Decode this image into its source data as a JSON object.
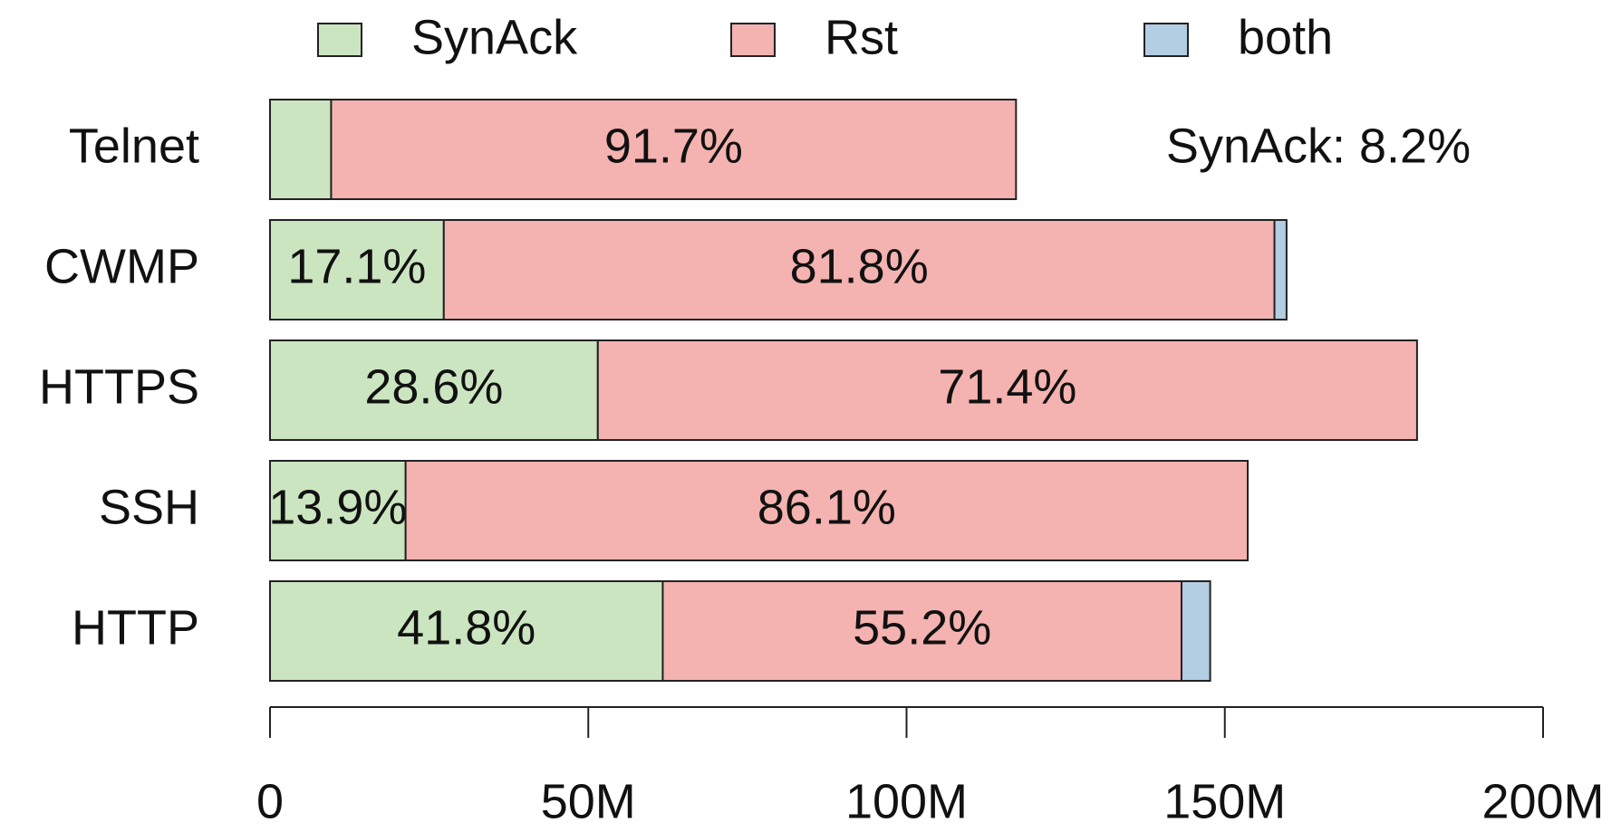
{
  "chart_data": {
    "type": "stacked-bar-horizontal",
    "categories": [
      "Telnet",
      "CWMP",
      "HTTPS",
      "SSH",
      "HTTP"
    ],
    "series": [
      {
        "name": "SynAck",
        "color": "#cce5c1",
        "values": [
          9600000,
          27300000,
          51500000,
          21300000,
          61700000
        ],
        "percent_labels": [
          null,
          "17.1%",
          "28.6%",
          "13.9%",
          "41.8%"
        ]
      },
      {
        "name": "Rst",
        "color": "#f4b3b0",
        "values": [
          107600000,
          130500000,
          128700000,
          132300000,
          81500000
        ],
        "percent_labels": [
          "91.7%",
          "81.8%",
          "71.4%",
          "86.1%",
          "55.2%"
        ]
      },
      {
        "name": "both",
        "color": "#b3cde3",
        "values": [
          0,
          1900000,
          0,
          0,
          4500000
        ],
        "percent_labels": [
          null,
          null,
          null,
          null,
          null
        ]
      }
    ],
    "annotation": "SynAck: 8.2%",
    "xlim": [
      0,
      200000000
    ],
    "xticks": [
      0,
      {
        "value": 50000000,
        "label": "50M"
      },
      {
        "value": 100000000,
        "label": "100M"
      },
      {
        "value": 150000000,
        "label": "150M"
      },
      {
        "value": 200000000,
        "label": "200M"
      }
    ]
  }
}
